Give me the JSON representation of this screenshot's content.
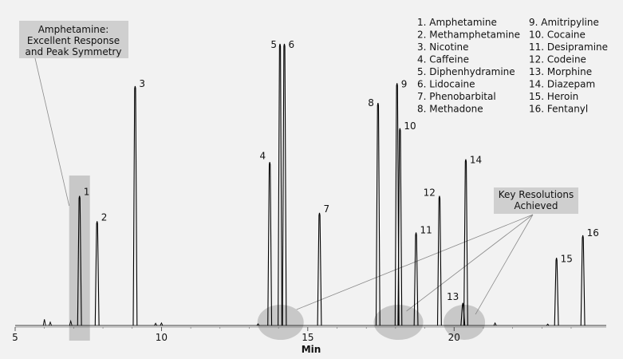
{
  "chart_data": {
    "type": "line",
    "title": "",
    "xlabel": "Min",
    "ylabel": "",
    "xlim": [
      5,
      25.2
    ],
    "ylim": [
      0,
      100
    ],
    "grid": false,
    "legend_placement": "top-right",
    "x_ticks": [
      {
        "value": 5,
        "label": "5"
      },
      {
        "value": 10,
        "label": "10"
      },
      {
        "value": 15,
        "label": "15"
      },
      {
        "value": 20,
        "label": "20"
      }
    ],
    "compounds": [
      {
        "id": "1",
        "name": "Amphetamine",
        "rt": 7.2,
        "height": 46
      },
      {
        "id": "2",
        "name": "Methamphetamine",
        "rt": 7.8,
        "height": 37
      },
      {
        "id": "3",
        "name": "Nicotine",
        "rt": 9.1,
        "height": 85
      },
      {
        "id": "4",
        "name": "Caffeine",
        "rt": 13.7,
        "height": 58
      },
      {
        "id": "5",
        "name": "Diphenhydramine",
        "rt": 14.05,
        "height": 100
      },
      {
        "id": "6",
        "name": "Lidocaine",
        "rt": 14.2,
        "height": 100
      },
      {
        "id": "7",
        "name": "Phenobarbital",
        "rt": 15.4,
        "height": 40
      },
      {
        "id": "8",
        "name": "Methadone",
        "rt": 17.4,
        "height": 79
      },
      {
        "id": "9",
        "name": "Amitripyline",
        "rt": 18.05,
        "height": 86
      },
      {
        "id": "10",
        "name": "Cocaine",
        "rt": 18.15,
        "height": 70
      },
      {
        "id": "11",
        "name": "Desipramine",
        "rt": 18.7,
        "height": 33
      },
      {
        "id": "12",
        "name": "Codeine",
        "rt": 19.5,
        "height": 46
      },
      {
        "id": "13",
        "name": "Morphine",
        "rt": 20.3,
        "height": 8
      },
      {
        "id": "14",
        "name": "Diazepam",
        "rt": 20.4,
        "height": 59
      },
      {
        "id": "15",
        "name": "Heroin",
        "rt": 23.5,
        "height": 24
      },
      {
        "id": "16",
        "name": "Fentanyl",
        "rt": 24.4,
        "height": 32
      }
    ],
    "callouts": {
      "amphetamine": {
        "lines": [
          "Amphetamine:",
          "Excellent Response",
          "and Peak Symmetry"
        ]
      },
      "resolutions": {
        "lines": [
          "Key Resolutions",
          "Achieved"
        ]
      }
    },
    "colors": {
      "background": "#f2f2f2",
      "trace": "#000000",
      "highlight": "#c8c8c8",
      "callout_box": "#cfcfcf",
      "leader": "#8a8a8a"
    }
  }
}
